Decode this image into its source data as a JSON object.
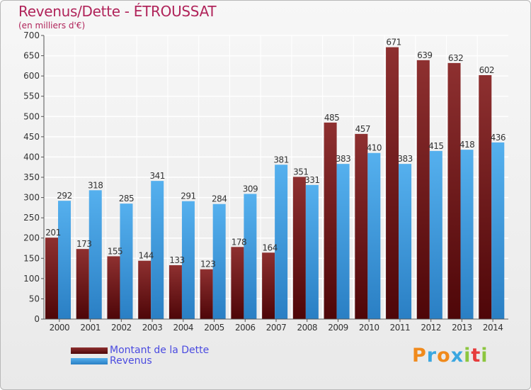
{
  "header": {
    "title": "Revenus/Dette - ÉTROUSSAT",
    "subtitle": "(en milliers d'€)"
  },
  "legend": [
    {
      "label": "Montant de la Dette",
      "color": "#6b0f12"
    },
    {
      "label": "Revenus",
      "color": "#3c9be2"
    }
  ],
  "logo": {
    "letters": [
      {
        "char": "P",
        "color": "#f08a1c"
      },
      {
        "char": "r",
        "color": "#3aa7e0"
      },
      {
        "char": "o",
        "color": "#f08a1c"
      },
      {
        "char": "x",
        "color": "#3aa7e0"
      },
      {
        "char": "i",
        "color": "#8cc63f"
      },
      {
        "char": "t",
        "color": "#e63c3c"
      },
      {
        "char": "i",
        "color": "#8cc63f"
      }
    ]
  },
  "chart_data": {
    "type": "bar",
    "categories": [
      "2000",
      "2001",
      "2002",
      "2003",
      "2004",
      "2005",
      "2006",
      "2007",
      "2008",
      "2009",
      "2010",
      "2011",
      "2012",
      "2013",
      "2014"
    ],
    "series": [
      {
        "name": "Montant de la Dette",
        "color": "#8a2a2a",
        "values": [
          201,
          173,
          155,
          144,
          133,
          123,
          178,
          164,
          351,
          485,
          457,
          671,
          639,
          632,
          602
        ]
      },
      {
        "name": "Revenus",
        "color": "#4aa6e6",
        "values": [
          292,
          318,
          285,
          341,
          291,
          284,
          309,
          381,
          331,
          383,
          410,
          383,
          415,
          418,
          436
        ]
      }
    ],
    "ylim": [
      0,
      700
    ],
    "yticks": [
      0,
      50,
      100,
      150,
      200,
      250,
      300,
      350,
      400,
      450,
      500,
      550,
      600,
      650,
      700
    ],
    "grid": true,
    "legend_position": "bottom-left"
  }
}
